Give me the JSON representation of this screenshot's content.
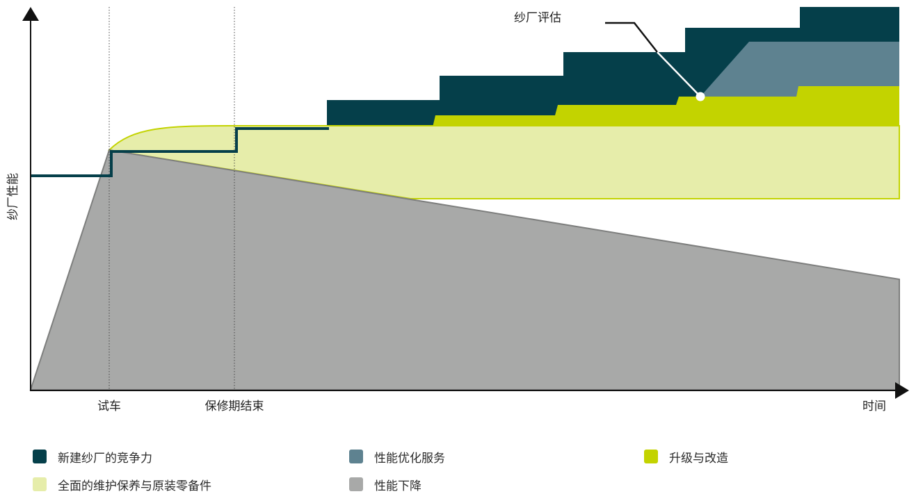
{
  "axes": {
    "y_label": "纱厂性能",
    "x_label": "时间",
    "x_markers": [
      "试车",
      "保修期结束"
    ]
  },
  "callout": {
    "label": "纱厂评估"
  },
  "legend": {
    "items": [
      {
        "label": "新建纱厂的竞争力",
        "color": "#053f4a"
      },
      {
        "label": "性能优化服务",
        "color": "#5e8290"
      },
      {
        "label": "升级与改造",
        "color": "#c3d300"
      },
      {
        "label": "全面的维护保养与原装零备件",
        "color": "#e6edaa"
      },
      {
        "label": "性能下降",
        "color": "#a8a9a8"
      }
    ]
  }
}
